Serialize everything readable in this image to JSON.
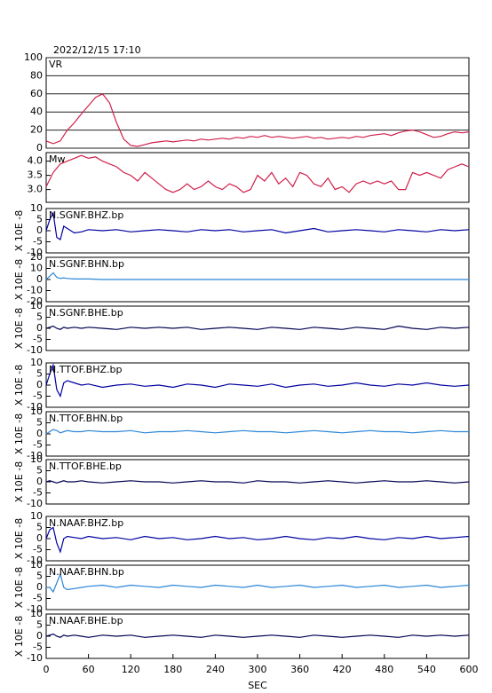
{
  "chart_data": [
    {
      "type": "line",
      "title": "2022/12/15  17:10",
      "label": "VR",
      "color": "#d0204a",
      "grid": true,
      "xlim": [
        0,
        600
      ],
      "ylim": [
        0,
        100
      ],
      "yticks": [
        0,
        20,
        40,
        60,
        80,
        100
      ],
      "x": [
        0,
        10,
        20,
        30,
        40,
        50,
        60,
        70,
        80,
        90,
        100,
        110,
        120,
        130,
        140,
        150,
        160,
        170,
        180,
        190,
        200,
        210,
        220,
        230,
        240,
        250,
        260,
        270,
        280,
        290,
        300,
        310,
        320,
        330,
        340,
        350,
        360,
        370,
        380,
        390,
        400,
        410,
        420,
        430,
        440,
        450,
        460,
        470,
        480,
        490,
        500,
        510,
        520,
        530,
        540,
        550,
        560,
        570,
        580,
        590,
        600
      ],
      "values": [
        8,
        5,
        8,
        20,
        28,
        38,
        47,
        56,
        60,
        50,
        28,
        10,
        3,
        2,
        4,
        6,
        7,
        8,
        7,
        8,
        9,
        8,
        10,
        9,
        10,
        11,
        10,
        12,
        11,
        13,
        12,
        14,
        12,
        13,
        12,
        11,
        12,
        13,
        11,
        12,
        10,
        11,
        12,
        11,
        13,
        12,
        14,
        15,
        16,
        14,
        17,
        19,
        20,
        18,
        15,
        12,
        13,
        16,
        18,
        17,
        18
      ]
    },
    {
      "type": "line",
      "label": "Mw",
      "color": "#d0204a",
      "grid": false,
      "xlim": [
        0,
        600
      ],
      "ylim": [
        2.55,
        4.3
      ],
      "yticks": [
        {
          "value": 3,
          "label": "3.0"
        },
        {
          "value": 3.5,
          "label": "3.5"
        },
        {
          "value": 4,
          "label": "4.0"
        }
      ],
      "x": [
        0,
        10,
        20,
        30,
        40,
        50,
        60,
        70,
        80,
        90,
        100,
        110,
        120,
        130,
        140,
        150,
        160,
        170,
        180,
        190,
        200,
        210,
        220,
        230,
        240,
        250,
        260,
        270,
        280,
        290,
        300,
        310,
        320,
        330,
        340,
        350,
        360,
        370,
        380,
        390,
        400,
        410,
        420,
        430,
        440,
        450,
        460,
        470,
        480,
        490,
        500,
        510,
        520,
        530,
        540,
        550,
        560,
        570,
        580,
        590,
        600
      ],
      "values": [
        3.1,
        3.6,
        3.9,
        4.0,
        4.1,
        4.2,
        4.1,
        4.15,
        4.0,
        3.9,
        3.8,
        3.6,
        3.5,
        3.3,
        3.6,
        3.4,
        3.2,
        3.0,
        2.9,
        3.0,
        3.2,
        3.0,
        3.1,
        3.3,
        3.1,
        3.0,
        3.2,
        3.1,
        2.9,
        3.0,
        3.5,
        3.3,
        3.6,
        3.2,
        3.4,
        3.1,
        3.6,
        3.5,
        3.2,
        3.1,
        3.4,
        3.0,
        3.1,
        2.9,
        3.2,
        3.3,
        3.2,
        3.3,
        3.2,
        3.3,
        3.0,
        3.0,
        3.6,
        3.5,
        3.6,
        3.5,
        3.4,
        3.7,
        3.8,
        3.9,
        3.8
      ]
    },
    {
      "type": "line",
      "label": "N.SGNF.BHZ.bp",
      "ylabel": "X 10E -8",
      "color": "#0000a0",
      "grid": false,
      "xlim": [
        0,
        600
      ],
      "ylim": [
        -10,
        10
      ],
      "yticks": [
        -10,
        -5,
        0,
        5,
        10
      ],
      "x": [
        0,
        5,
        10,
        15,
        20,
        25,
        30,
        40,
        50,
        60,
        80,
        100,
        120,
        140,
        160,
        180,
        200,
        220,
        240,
        260,
        280,
        300,
        320,
        340,
        360,
        380,
        400,
        420,
        440,
        460,
        480,
        500,
        520,
        540,
        560,
        580,
        600
      ],
      "values": [
        0,
        5,
        8,
        -3,
        -4,
        2,
        1,
        -1,
        -0.5,
        0.5,
        0,
        0.5,
        -0.5,
        0,
        0.5,
        0,
        -0.5,
        0.5,
        0,
        0.5,
        -0.5,
        0,
        0.5,
        -1,
        0,
        1,
        -0.5,
        0,
        0.5,
        0,
        -0.5,
        0.5,
        0,
        -0.5,
        0.5,
        0,
        0.5
      ]
    },
    {
      "type": "line",
      "label": "N.SGNF.BHN.bp",
      "ylabel": "X 10E -8",
      "color": "#2a86d8",
      "grid": false,
      "xlim": [
        0,
        600
      ],
      "ylim": [
        -20,
        20
      ],
      "yticks": [
        -20,
        -10,
        0,
        10,
        20
      ],
      "x": [
        0,
        5,
        10,
        15,
        20,
        25,
        30,
        40,
        50,
        60,
        80,
        100,
        120,
        140,
        160,
        180,
        200,
        220,
        240,
        260,
        280,
        300,
        320,
        340,
        360,
        380,
        400,
        420,
        440,
        460,
        480,
        500,
        520,
        540,
        560,
        580,
        600
      ],
      "values": [
        0,
        3,
        6,
        2,
        1,
        1.5,
        1,
        0.5,
        0.5,
        0.5,
        0,
        0,
        0,
        0,
        0,
        0,
        0,
        0,
        0,
        0,
        0,
        0,
        0,
        0,
        0,
        0,
        0,
        0,
        0,
        0,
        0,
        0,
        0,
        0,
        0,
        0,
        0
      ]
    },
    {
      "type": "line",
      "label": "N.SGNF.BHE.bp",
      "ylabel": "X 10E -8",
      "color": "#000050",
      "grid": false,
      "xlim": [
        0,
        600
      ],
      "ylim": [
        -10,
        10
      ],
      "yticks": [
        -10,
        -5,
        0,
        5,
        10
      ],
      "x": [
        0,
        5,
        10,
        15,
        20,
        25,
        30,
        40,
        50,
        60,
        80,
        100,
        120,
        140,
        160,
        180,
        200,
        220,
        240,
        260,
        280,
        300,
        320,
        340,
        360,
        380,
        400,
        420,
        440,
        460,
        480,
        500,
        520,
        540,
        560,
        580,
        600
      ],
      "values": [
        0,
        0.5,
        1,
        0,
        -0.5,
        0.5,
        0,
        0.5,
        0,
        0.5,
        0,
        -0.5,
        0.5,
        0,
        0.5,
        0,
        0.5,
        -0.5,
        0,
        0.5,
        0,
        -0.5,
        0.5,
        0,
        -0.5,
        0.5,
        0,
        -0.5,
        0.5,
        0,
        -0.5,
        1,
        0,
        -0.5,
        0.5,
        0,
        0.5
      ]
    },
    {
      "type": "line",
      "label": "N.TTOF.BHZ.bp",
      "ylabel": "X 10E -8",
      "color": "#0000a0",
      "grid": false,
      "xlim": [
        0,
        600
      ],
      "ylim": [
        -10,
        10
      ],
      "yticks": [
        -10,
        -5,
        0,
        5,
        10
      ],
      "x": [
        0,
        5,
        10,
        15,
        20,
        25,
        30,
        40,
        50,
        60,
        80,
        100,
        120,
        140,
        160,
        180,
        200,
        220,
        240,
        260,
        280,
        300,
        320,
        340,
        360,
        380,
        400,
        420,
        440,
        460,
        480,
        500,
        520,
        540,
        560,
        580,
        600
      ],
      "values": [
        0,
        5,
        9,
        -2,
        -5,
        1,
        2,
        1,
        0,
        0.5,
        -1,
        0,
        0.5,
        -0.5,
        0,
        -1,
        0.5,
        0,
        -1,
        0.5,
        0,
        -0.5,
        0.5,
        -1,
        0,
        0.5,
        -0.5,
        0,
        1,
        0,
        -0.5,
        0.5,
        0,
        1,
        0,
        -0.5,
        0
      ]
    },
    {
      "type": "line",
      "label": "N.TTOF.BHN.bp",
      "ylabel": "X 10E -8",
      "color": "#2a86d8",
      "grid": false,
      "xlim": [
        0,
        600
      ],
      "ylim": [
        -10,
        10
      ],
      "yticks": [
        -10,
        -5,
        0,
        5,
        10
      ],
      "x": [
        0,
        5,
        10,
        15,
        20,
        25,
        30,
        40,
        50,
        60,
        80,
        100,
        120,
        140,
        160,
        180,
        200,
        220,
        240,
        260,
        280,
        300,
        320,
        340,
        360,
        380,
        400,
        420,
        440,
        460,
        480,
        500,
        520,
        540,
        560,
        580,
        600
      ],
      "values": [
        0,
        1,
        2,
        1.5,
        0.5,
        1,
        1.5,
        1,
        1,
        1.5,
        1,
        1,
        1.5,
        0.5,
        1,
        1,
        1.5,
        1,
        0.5,
        1,
        1.5,
        1,
        1,
        0.5,
        1,
        1.5,
        1,
        0.5,
        1,
        1.5,
        1,
        1,
        0.5,
        1,
        1.5,
        1,
        1
      ]
    },
    {
      "type": "line",
      "label": "N.TTOF.BHE.bp",
      "ylabel": "X 10E -8",
      "color": "#000050",
      "grid": false,
      "xlim": [
        0,
        600
      ],
      "ylim": [
        -10,
        10
      ],
      "yticks": [
        -10,
        -5,
        0,
        5,
        10
      ],
      "x": [
        0,
        5,
        10,
        15,
        20,
        25,
        30,
        40,
        50,
        60,
        80,
        100,
        120,
        140,
        160,
        180,
        200,
        220,
        240,
        260,
        280,
        300,
        320,
        340,
        360,
        380,
        400,
        420,
        440,
        460,
        480,
        500,
        520,
        540,
        560,
        580,
        600
      ],
      "values": [
        0,
        0.5,
        0,
        -0.5,
        0,
        0.5,
        0,
        0,
        0.5,
        0,
        -0.5,
        0,
        0.5,
        0,
        0,
        -0.5,
        0,
        0.5,
        0,
        0,
        -0.5,
        0.5,
        0,
        0,
        -0.5,
        0,
        0.5,
        0,
        -0.5,
        0,
        0.5,
        0,
        0,
        0.5,
        0,
        -0.5,
        0
      ]
    },
    {
      "type": "line",
      "label": "N.NAAF.BHZ.bp",
      "ylabel": "X 10E -8",
      "color": "#0000a0",
      "grid": false,
      "xlim": [
        0,
        600
      ],
      "ylim": [
        -10,
        10
      ],
      "yticks": [
        -10,
        -5,
        0,
        5,
        10
      ],
      "x": [
        0,
        5,
        10,
        15,
        20,
        25,
        30,
        40,
        50,
        60,
        80,
        100,
        120,
        140,
        160,
        180,
        200,
        220,
        240,
        260,
        280,
        300,
        320,
        340,
        360,
        380,
        400,
        420,
        440,
        460,
        480,
        500,
        520,
        540,
        560,
        580,
        600
      ],
      "values": [
        0,
        4,
        5,
        -2,
        -6,
        0,
        1,
        0.5,
        0,
        1,
        0,
        0.5,
        -0.5,
        1,
        0,
        0.5,
        -0.5,
        0,
        1,
        0,
        0.5,
        -0.5,
        0,
        1,
        0,
        -0.5,
        0.5,
        0,
        1,
        0,
        -0.5,
        0.5,
        0,
        1,
        0,
        0.5,
        1
      ]
    },
    {
      "type": "line",
      "label": "N.NAAF.BHN.bp",
      "ylabel": "X 10E -8",
      "color": "#2a86d8",
      "grid": false,
      "xlim": [
        0,
        600
      ],
      "ylim": [
        -10,
        10
      ],
      "yticks": [
        -10,
        -5,
        0,
        5,
        10
      ],
      "x": [
        0,
        5,
        10,
        15,
        20,
        25,
        30,
        40,
        50,
        60,
        80,
        100,
        120,
        140,
        160,
        180,
        200,
        220,
        240,
        260,
        280,
        300,
        320,
        340,
        360,
        380,
        400,
        420,
        440,
        460,
        480,
        500,
        520,
        540,
        560,
        580,
        600
      ],
      "values": [
        0,
        0,
        -2,
        2,
        6,
        0,
        -1,
        -0.5,
        0,
        0.5,
        1,
        0,
        1,
        0.5,
        0,
        1,
        0.5,
        0,
        1,
        0.5,
        0,
        1,
        0,
        0.5,
        1,
        0,
        0.5,
        1,
        0,
        0.5,
        1,
        0,
        0.5,
        1,
        0,
        0.5,
        1
      ]
    },
    {
      "type": "line",
      "label": "N.NAAF.BHE.bp",
      "ylabel": "X 10E -8",
      "color": "#000050",
      "grid": false,
      "xlim": [
        0,
        600
      ],
      "ylim": [
        -10,
        10
      ],
      "yticks": [
        -10,
        -5,
        0,
        5,
        10
      ],
      "xticks": [
        0,
        60,
        120,
        180,
        240,
        300,
        360,
        420,
        480,
        540,
        600
      ],
      "xlabel": "SEC",
      "x": [
        0,
        5,
        10,
        15,
        20,
        25,
        30,
        40,
        50,
        60,
        80,
        100,
        120,
        140,
        160,
        180,
        200,
        220,
        240,
        260,
        280,
        300,
        320,
        340,
        360,
        380,
        400,
        420,
        440,
        460,
        480,
        500,
        520,
        540,
        560,
        580,
        600
      ],
      "values": [
        0,
        0.5,
        1,
        0,
        -0.5,
        0.5,
        0,
        0.5,
        0,
        -0.5,
        0.5,
        0,
        0.5,
        -0.5,
        0,
        0.5,
        0,
        -0.5,
        0.5,
        0,
        -0.5,
        0,
        0.5,
        0,
        -0.5,
        0.5,
        0,
        -0.5,
        0,
        0.5,
        0,
        -0.5,
        0.5,
        0,
        0.5,
        0,
        0.5
      ]
    }
  ]
}
